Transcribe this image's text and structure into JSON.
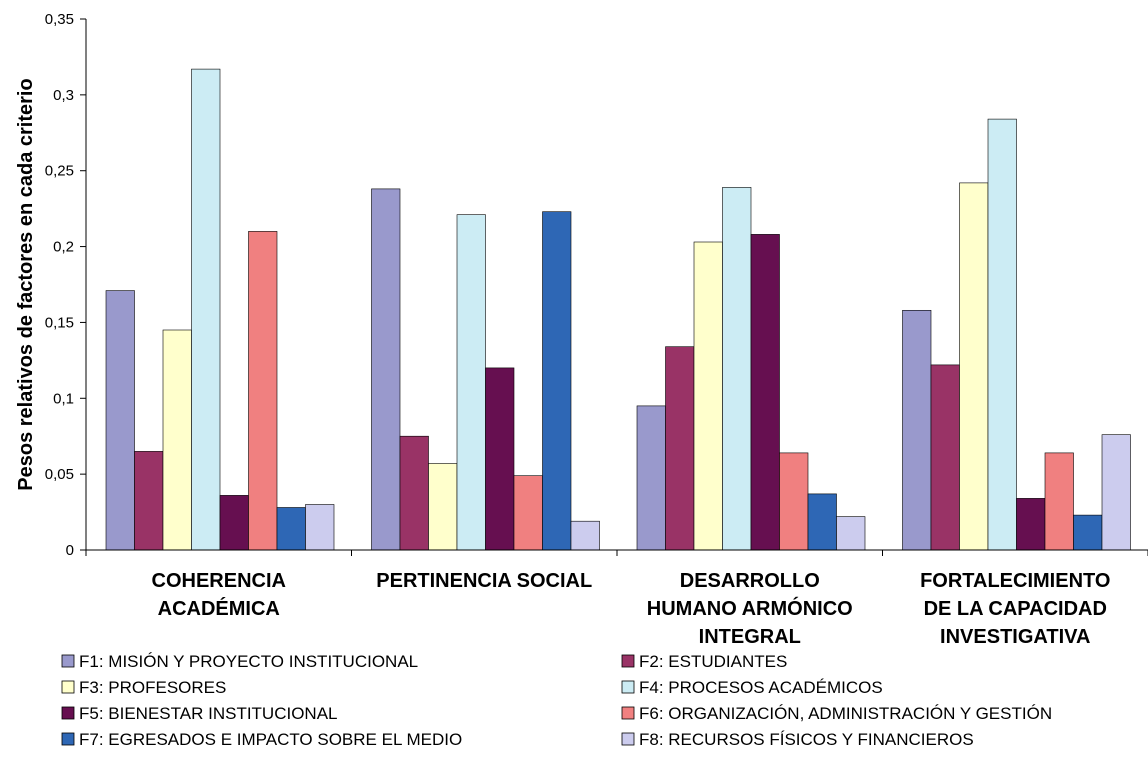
{
  "chart_data": {
    "type": "bar",
    "title": "",
    "xlabel": "",
    "ylabel": "Pesos relativos de factores en cada criterio",
    "ylim": [
      0,
      0.35
    ],
    "yticks": [
      "0",
      "0,05",
      "0,1",
      "0,15",
      "0,2",
      "0,25",
      "0,3",
      "0,35"
    ],
    "ytick_values": [
      0,
      0.05,
      0.1,
      0.15,
      0.2,
      0.25,
      0.3,
      0.35
    ],
    "grid": false,
    "legend_position": "bottom",
    "categories": [
      [
        "COHERENCIA",
        "ACADÉMICA"
      ],
      [
        "PERTINENCIA SOCIAL"
      ],
      [
        "DESARROLLO",
        "HUMANO ARMÓNICO",
        "INTEGRAL"
      ],
      [
        "FORTALECIMIENTO",
        "DE LA CAPACIDAD",
        "INVESTIGATIVA"
      ]
    ],
    "series": [
      {
        "name": "F1: MISIÓN Y PROYECTO INSTITUCIONAL",
        "color": "#9999CC",
        "values": [
          0.171,
          0.238,
          0.095,
          0.158
        ]
      },
      {
        "name": "F2: ESTUDIANTES",
        "color": "#993366",
        "values": [
          0.065,
          0.075,
          0.134,
          0.122
        ]
      },
      {
        "name": "F3: PROFESORES",
        "color": "#FFFFCC",
        "values": [
          0.145,
          0.057,
          0.203,
          0.242
        ]
      },
      {
        "name": "F4: PROCESOS ACADÉMICOS",
        "color": "#CCECF4",
        "values": [
          0.317,
          0.221,
          0.239,
          0.284
        ]
      },
      {
        "name": "F5: BIENESTAR INSTITUCIONAL",
        "color": "#660F50",
        "values": [
          0.036,
          0.12,
          0.208,
          0.034
        ]
      },
      {
        "name": "F6: ORGANIZACIÓN, ADMINISTRACIÓN Y GESTIÓN",
        "color": "#F08080",
        "values": [
          0.21,
          0.049,
          0.064,
          0.064
        ]
      },
      {
        "name": "F7: EGRESADOS E IMPACTO SOBRE EL MEDIO",
        "color": "#2E67B5",
        "values": [
          0.028,
          0.223,
          0.037,
          0.023
        ]
      },
      {
        "name": "F8: RECURSOS FÍSICOS Y FINANCIEROS",
        "color": "#CCCCEE",
        "values": [
          0.03,
          0.019,
          0.022,
          0.076
        ]
      }
    ]
  }
}
